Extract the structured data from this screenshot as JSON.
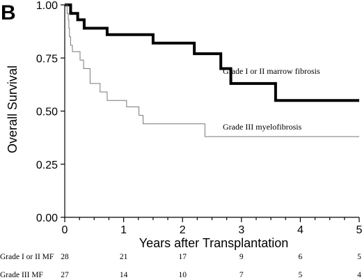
{
  "panel_label": "B",
  "chart_data": {
    "type": "line",
    "step": true,
    "ylabel": "Overall Survival",
    "xlabel": "Years after Transplantation",
    "xlim": [
      0,
      5
    ],
    "ylim": [
      0,
      1
    ],
    "x_ticks": [
      "0",
      "1",
      "2",
      "3",
      "4",
      "5"
    ],
    "y_ticks": [
      "0.00",
      "0.25",
      "0.50",
      "0.75",
      "1.00"
    ],
    "grid": false,
    "legend": "inline labels",
    "series": [
      {
        "name": "Grade I or II marrow fibrosis",
        "color": "#000000",
        "points": [
          [
            0,
            1.0
          ],
          [
            0.1,
            0.96
          ],
          [
            0.22,
            0.93
          ],
          [
            0.33,
            0.89
          ],
          [
            0.72,
            0.86
          ],
          [
            1.5,
            0.82
          ],
          [
            2.2,
            0.77
          ],
          [
            2.65,
            0.7
          ],
          [
            2.82,
            0.63
          ],
          [
            3.58,
            0.55
          ],
          [
            5.0,
            0.55
          ]
        ]
      },
      {
        "name": "Grade III myelofibrosis",
        "color": "#777777",
        "points": [
          [
            0,
            1.0
          ],
          [
            0.04,
            0.96
          ],
          [
            0.06,
            0.93
          ],
          [
            0.07,
            0.89
          ],
          [
            0.08,
            0.85
          ],
          [
            0.1,
            0.81
          ],
          [
            0.13,
            0.78
          ],
          [
            0.26,
            0.74
          ],
          [
            0.32,
            0.7
          ],
          [
            0.43,
            0.63
          ],
          [
            0.6,
            0.59
          ],
          [
            0.72,
            0.55
          ],
          [
            1.05,
            0.52
          ],
          [
            1.26,
            0.48
          ],
          [
            1.33,
            0.44
          ],
          [
            2.38,
            0.38
          ],
          [
            5.0,
            0.38
          ]
        ]
      }
    ],
    "risk_table": {
      "rows": [
        {
          "label": "Grade I or II MF",
          "values": [
            "28",
            "21",
            "17",
            "9",
            "6",
            "5"
          ]
        },
        {
          "label": "Grade III MF",
          "values": [
            "27",
            "14",
            "10",
            "7",
            "5",
            "4"
          ]
        }
      ]
    }
  }
}
